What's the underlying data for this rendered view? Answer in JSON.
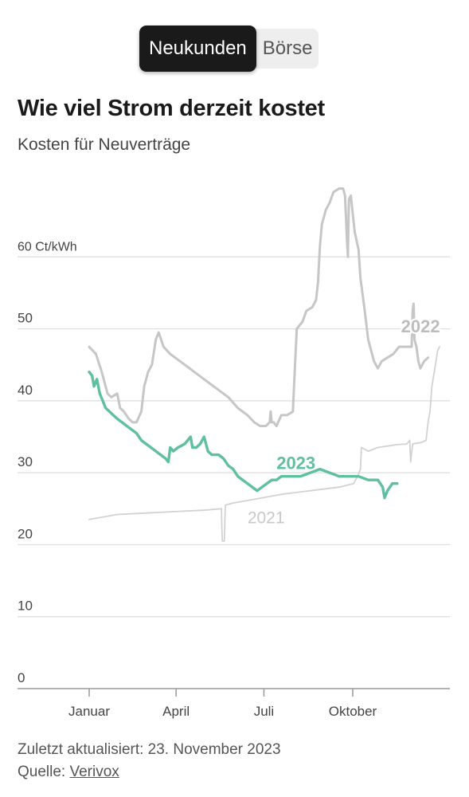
{
  "toggle": {
    "options": [
      {
        "label": "Neukunden",
        "active": true
      },
      {
        "label": "Börse",
        "active": false
      }
    ]
  },
  "header": {
    "title": "Wie viel Strom derzeit kostet",
    "subtitle": "Kosten für Neuverträge"
  },
  "footer": {
    "updated": "Zuletzt aktualisiert: 23. November 2023",
    "source_prefix": "Quelle: ",
    "source_link": "Verivox"
  },
  "colors": {
    "series_2023": "#5fbfa0",
    "series_2022": "#c6c6c6",
    "series_2021": "#d2d2d2",
    "grid": "#dcdcdc",
    "axis": "#999999",
    "tick_text": "#444444"
  },
  "chart_data": {
    "type": "line",
    "x_axis": {
      "unit": "day-of-year",
      "range": [
        1,
        365
      ],
      "ticks": [
        {
          "label": "Januar",
          "value": 1
        },
        {
          "label": "April",
          "value": 91
        },
        {
          "label": "Juli",
          "value": 182
        },
        {
          "label": "Oktober",
          "value": 274
        }
      ]
    },
    "y_axis": {
      "range": [
        0,
        70
      ],
      "grid": true,
      "ticks": [
        {
          "value": 0,
          "label": "0"
        },
        {
          "value": 10,
          "label": "10"
        },
        {
          "value": 20,
          "label": "20"
        },
        {
          "value": 30,
          "label": "30"
        },
        {
          "value": 40,
          "label": "40"
        },
        {
          "value": 50,
          "label": "50"
        },
        {
          "value": 60,
          "label": "60 Ct/kWh"
        }
      ]
    },
    "series": [
      {
        "name": "2021",
        "points": [
          [
            1,
            23.5
          ],
          [
            30,
            24.2
          ],
          [
            60,
            24.4
          ],
          [
            90,
            24.6
          ],
          [
            120,
            24.8
          ],
          [
            138,
            25.0
          ],
          [
            138.5,
            22
          ],
          [
            139,
            20.5
          ],
          [
            141,
            20.5
          ],
          [
            142,
            25.5
          ],
          [
            150,
            25.8
          ],
          [
            180,
            26.5
          ],
          [
            200,
            27.0
          ],
          [
            230,
            27.5
          ],
          [
            260,
            28.0
          ],
          [
            275,
            28.5
          ],
          [
            279,
            29.5
          ],
          [
            282,
            30.5
          ],
          [
            283,
            33.5
          ],
          [
            290,
            33.0
          ],
          [
            300,
            33.5
          ],
          [
            310,
            33.7
          ],
          [
            320,
            33.9
          ],
          [
            330,
            34.0
          ],
          [
            333,
            34.5
          ],
          [
            334,
            31.5
          ],
          [
            336,
            34.0
          ],
          [
            345,
            34.2
          ],
          [
            350,
            34.5
          ],
          [
            352,
            37.0
          ],
          [
            354,
            38.5
          ],
          [
            356,
            42.0
          ],
          [
            359,
            44.5
          ],
          [
            362,
            47.0
          ],
          [
            364,
            47.5
          ]
        ]
      },
      {
        "name": "2022",
        "points": [
          [
            1,
            47.5
          ],
          [
            8,
            46.5
          ],
          [
            14,
            44.0
          ],
          [
            20,
            41.0
          ],
          [
            24,
            40.5
          ],
          [
            30,
            41.0
          ],
          [
            33,
            39.0
          ],
          [
            37,
            38.5
          ],
          [
            42,
            37.5
          ],
          [
            46,
            37.0
          ],
          [
            50,
            37.0
          ],
          [
            55,
            38.5
          ],
          [
            58,
            42.0
          ],
          [
            62,
            44.0
          ],
          [
            66,
            45.0
          ],
          [
            70,
            48.5
          ],
          [
            73,
            49.5
          ],
          [
            78,
            47.5
          ],
          [
            85,
            46.5
          ],
          [
            95,
            45.5
          ],
          [
            105,
            44.5
          ],
          [
            115,
            43.5
          ],
          [
            125,
            42.5
          ],
          [
            135,
            41.5
          ],
          [
            145,
            40.5
          ],
          [
            155,
            39.0
          ],
          [
            165,
            38.0
          ],
          [
            172,
            37.0
          ],
          [
            178,
            36.5
          ],
          [
            184,
            36.5
          ],
          [
            188,
            37.0
          ],
          [
            189,
            38.5
          ],
          [
            190,
            37.0
          ],
          [
            192,
            37.0
          ],
          [
            195,
            36.5
          ],
          [
            200,
            38.0
          ],
          [
            206,
            38.0
          ],
          [
            212,
            38.5
          ],
          [
            214,
            44.5
          ],
          [
            216,
            50.0
          ],
          [
            222,
            51.0
          ],
          [
            226,
            52.5
          ],
          [
            232,
            53.0
          ],
          [
            236,
            54.0
          ],
          [
            238,
            56.5
          ],
          [
            240,
            61.5
          ],
          [
            242,
            64.5
          ],
          [
            246,
            66.5
          ],
          [
            250,
            67.5
          ],
          [
            254,
            69.0
          ],
          [
            260,
            69.5
          ],
          [
            264,
            69.5
          ],
          [
            266,
            68.5
          ],
          [
            268,
            62.5
          ],
          [
            269,
            60.0
          ],
          [
            270,
            68.0
          ],
          [
            272,
            68.5
          ],
          [
            276,
            63.5
          ],
          [
            280,
            61.0
          ],
          [
            282,
            57.0
          ],
          [
            286,
            53.0
          ],
          [
            290,
            48.5
          ],
          [
            296,
            45.5
          ],
          [
            300,
            44.5
          ],
          [
            304,
            45.5
          ],
          [
            310,
            46.0
          ],
          [
            316,
            46.5
          ],
          [
            322,
            47.5
          ],
          [
            330,
            47.5
          ],
          [
            335,
            47.5
          ],
          [
            336,
            52.5
          ],
          [
            337,
            53.5
          ],
          [
            338,
            48.5
          ],
          [
            340,
            47.5
          ],
          [
            342,
            45.5
          ],
          [
            344,
            44.5
          ],
          [
            348,
            45.5
          ],
          [
            352,
            46.0
          ]
        ]
      },
      {
        "name": "2023",
        "points": [
          [
            1,
            44.0
          ],
          [
            4,
            43.5
          ],
          [
            6,
            42.0
          ],
          [
            9,
            43.0
          ],
          [
            12,
            41.0
          ],
          [
            15,
            40.0
          ],
          [
            18,
            39.0
          ],
          [
            22,
            38.5
          ],
          [
            26,
            38.0
          ],
          [
            30,
            37.5
          ],
          [
            35,
            37.0
          ],
          [
            40,
            36.5
          ],
          [
            45,
            36.0
          ],
          [
            50,
            35.5
          ],
          [
            55,
            34.5
          ],
          [
            60,
            34.0
          ],
          [
            65,
            33.5
          ],
          [
            70,
            33.0
          ],
          [
            75,
            32.5
          ],
          [
            80,
            32.0
          ],
          [
            83,
            31.5
          ],
          [
            85,
            33.5
          ],
          [
            88,
            33.0
          ],
          [
            93,
            33.5
          ],
          [
            100,
            34.0
          ],
          [
            103,
            34.5
          ],
          [
            106,
            35.0
          ],
          [
            108,
            33.5
          ],
          [
            112,
            33.5
          ],
          [
            116,
            34.0
          ],
          [
            120,
            35.0
          ],
          [
            124,
            33.0
          ],
          [
            128,
            32.5
          ],
          [
            135,
            32.5
          ],
          [
            140,
            32.0
          ],
          [
            145,
            31.0
          ],
          [
            150,
            30.5
          ],
          [
            155,
            29.5
          ],
          [
            160,
            29.0
          ],
          [
            165,
            28.5
          ],
          [
            170,
            28.0
          ],
          [
            175,
            27.5
          ],
          [
            180,
            28.0
          ],
          [
            185,
            28.5
          ],
          [
            190,
            29.0
          ],
          [
            195,
            29.0
          ],
          [
            200,
            29.5
          ],
          [
            210,
            29.5
          ],
          [
            220,
            29.5
          ],
          [
            230,
            30.0
          ],
          [
            240,
            30.5
          ],
          [
            250,
            30.0
          ],
          [
            260,
            29.5
          ],
          [
            270,
            29.5
          ],
          [
            280,
            29.5
          ],
          [
            290,
            29.0
          ],
          [
            300,
            29.0
          ],
          [
            305,
            28.0
          ],
          [
            307,
            26.5
          ],
          [
            310,
            27.5
          ],
          [
            315,
            28.5
          ],
          [
            320,
            28.5
          ]
        ]
      }
    ],
    "annotations": [
      {
        "series": "2023",
        "label": "2023",
        "x": 195,
        "y": 30.5
      },
      {
        "series": "2022",
        "label": "2022",
        "x": 324,
        "y": 49.5
      },
      {
        "series": "2021",
        "label": "2021",
        "x": 165,
        "y": 23.0
      }
    ]
  }
}
